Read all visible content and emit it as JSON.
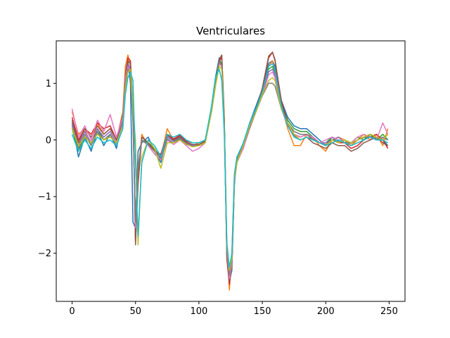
{
  "chart_data": {
    "type": "line",
    "title": "Ventriculares",
    "xlabel": "",
    "ylabel": "",
    "xlim": [
      -12.5,
      262.5
    ],
    "ylim": [
      -2.85,
      1.75
    ],
    "xticks": [
      0,
      50,
      100,
      150,
      200,
      250
    ],
    "xtick_labels": [
      "0",
      "50",
      "100",
      "150",
      "200",
      "250"
    ],
    "yticks": [
      -2,
      -1,
      0,
      1
    ],
    "ytick_labels": [
      "−2",
      "−1",
      "0",
      "1"
    ],
    "grid": false,
    "legend": "none",
    "x": [
      0,
      5,
      10,
      15,
      20,
      25,
      30,
      35,
      40,
      42,
      44,
      46,
      48,
      50,
      52,
      55,
      60,
      65,
      70,
      75,
      80,
      85,
      90,
      95,
      100,
      105,
      110,
      113,
      116,
      118,
      120,
      122,
      124,
      126,
      128,
      130,
      135,
      140,
      145,
      150,
      155,
      158,
      160,
      165,
      170,
      175,
      180,
      185,
      190,
      195,
      200,
      205,
      210,
      215,
      220,
      225,
      230,
      235,
      240,
      245,
      249
    ],
    "series": [
      {
        "color": "#1f77b4",
        "values": [
          0.3,
          -0.3,
          0.05,
          -0.2,
          0.15,
          -0.1,
          0.1,
          -0.15,
          0.4,
          1.2,
          1.4,
          1.0,
          -1.45,
          -1.55,
          -0.2,
          -0.05,
          0.05,
          -0.2,
          -0.4,
          0.05,
          -0.02,
          0.03,
          -0.08,
          -0.08,
          -0.1,
          -0.05,
          0.6,
          1.1,
          1.45,
          1.3,
          0.2,
          -2.0,
          -2.5,
          -2.3,
          -0.8,
          -0.3,
          -0.1,
          0.3,
          0.6,
          0.9,
          1.35,
          1.4,
          1.3,
          0.7,
          0.4,
          0.25,
          0.2,
          0.2,
          0.1,
          0.0,
          -0.1,
          0.05,
          0.0,
          -0.05,
          -0.1,
          0.0,
          0.05,
          0.1,
          0.05,
          0.0,
          -0.1
        ]
      },
      {
        "color": "#ff7f0e",
        "values": [
          0.5,
          0.1,
          0.2,
          -0.1,
          0.3,
          0.1,
          0.2,
          0.0,
          0.5,
          1.3,
          1.5,
          1.3,
          0.5,
          -1.6,
          -0.6,
          0.1,
          -0.1,
          -0.2,
          -0.3,
          0.2,
          0.0,
          0.1,
          -0.05,
          -0.1,
          -0.05,
          0.0,
          0.5,
          1.0,
          1.4,
          1.5,
          0.4,
          -1.8,
          -2.65,
          -2.0,
          -0.6,
          -0.3,
          -0.1,
          0.3,
          0.5,
          0.8,
          1.3,
          1.4,
          1.2,
          0.6,
          0.2,
          -0.1,
          -0.1,
          0.1,
          0.05,
          -0.1,
          -0.2,
          0.0,
          0.05,
          0.0,
          -0.1,
          0.0,
          0.1,
          0.0,
          0.1,
          -0.1,
          0.2
        ]
      },
      {
        "color": "#2ca02c",
        "values": [
          0.2,
          -0.2,
          0.1,
          -0.1,
          0.2,
          0.0,
          0.1,
          -0.1,
          0.3,
          1.0,
          1.3,
          1.2,
          0.3,
          -1.4,
          -0.5,
          0.0,
          -0.05,
          -0.15,
          -0.35,
          0.0,
          -0.05,
          0.05,
          -0.05,
          -0.1,
          -0.08,
          -0.02,
          0.55,
          1.05,
          1.4,
          1.35,
          0.3,
          -1.9,
          -2.4,
          -2.1,
          -0.7,
          -0.4,
          -0.05,
          0.25,
          0.55,
          0.85,
          1.25,
          1.3,
          1.2,
          0.65,
          0.35,
          0.2,
          0.15,
          0.15,
          0.05,
          -0.05,
          -0.05,
          0.05,
          -0.05,
          0.0,
          -0.05,
          0.05,
          0.0,
          0.1,
          0.0,
          0.1,
          0.0
        ]
      },
      {
        "color": "#d62728",
        "values": [
          0.4,
          0.0,
          0.2,
          0.1,
          0.3,
          0.2,
          0.25,
          0.0,
          0.4,
          1.1,
          1.45,
          1.4,
          0.6,
          -1.8,
          -0.8,
          0.05,
          -0.05,
          -0.2,
          -0.25,
          0.1,
          0.02,
          0.08,
          -0.02,
          -0.05,
          -0.05,
          0.0,
          0.5,
          0.95,
          1.4,
          1.45,
          0.35,
          -2.1,
          -2.55,
          -2.2,
          -0.7,
          -0.35,
          -0.15,
          0.25,
          0.55,
          0.9,
          1.45,
          1.55,
          1.4,
          0.7,
          0.3,
          0.1,
          0.05,
          0.1,
          0.0,
          -0.05,
          -0.1,
          0.0,
          -0.05,
          -0.05,
          -0.15,
          -0.1,
          0.0,
          0.05,
          0.1,
          0.0,
          -0.15
        ]
      },
      {
        "color": "#9467bd",
        "values": [
          0.3,
          -0.1,
          0.15,
          -0.05,
          0.2,
          0.05,
          0.15,
          -0.05,
          0.35,
          1.05,
          1.35,
          1.25,
          0.4,
          -1.5,
          -0.55,
          0.05,
          -0.05,
          -0.2,
          -0.3,
          0.05,
          -0.02,
          0.05,
          -0.05,
          -0.1,
          -0.1,
          -0.05,
          0.55,
          1.0,
          1.35,
          1.3,
          0.25,
          -1.95,
          -2.35,
          -2.15,
          -0.65,
          -0.3,
          -0.08,
          0.3,
          0.55,
          0.8,
          1.2,
          1.25,
          1.15,
          0.6,
          0.3,
          0.15,
          0.1,
          0.1,
          0.05,
          -0.05,
          -0.05,
          0.0,
          0.05,
          -0.05,
          -0.05,
          0.0,
          0.05,
          0.05,
          0.0,
          0.05,
          0.0
        ]
      },
      {
        "color": "#8c564b",
        "values": [
          0.35,
          -0.05,
          0.2,
          0.05,
          0.25,
          0.1,
          0.2,
          0.0,
          0.45,
          1.15,
          1.4,
          1.35,
          0.55,
          -1.85,
          -0.75,
          0.05,
          -0.05,
          -0.18,
          -0.28,
          0.08,
          0.0,
          0.06,
          -0.04,
          -0.08,
          -0.08,
          -0.02,
          0.52,
          0.98,
          1.42,
          1.5,
          0.38,
          -2.05,
          -2.5,
          -2.25,
          -0.72,
          -0.38,
          -0.12,
          0.22,
          0.52,
          0.92,
          1.48,
          1.55,
          1.42,
          0.68,
          0.28,
          0.08,
          0.0,
          0.05,
          -0.05,
          -0.1,
          -0.15,
          -0.05,
          -0.1,
          -0.1,
          -0.2,
          -0.15,
          -0.05,
          0.0,
          0.05,
          -0.05,
          -0.1
        ]
      },
      {
        "color": "#e377c2",
        "values": [
          0.55,
          0.05,
          0.25,
          0.0,
          0.35,
          0.15,
          0.45,
          0.05,
          0.4,
          1.1,
          1.3,
          1.2,
          0.4,
          -1.55,
          -0.5,
          0.0,
          -0.1,
          -0.25,
          -0.35,
          0.0,
          -0.08,
          0.0,
          -0.1,
          -0.2,
          -0.15,
          -0.05,
          0.5,
          0.95,
          1.35,
          1.3,
          0.25,
          -1.95,
          -2.45,
          -2.2,
          -0.75,
          -0.4,
          -0.15,
          0.2,
          0.5,
          0.8,
          1.15,
          1.2,
          1.1,
          0.55,
          0.25,
          0.1,
          0.05,
          0.1,
          0.05,
          -0.05,
          0.0,
          0.05,
          0.0,
          -0.05,
          -0.05,
          0.05,
          0.1,
          0.05,
          0.0,
          0.3,
          0.1
        ]
      },
      {
        "color": "#7f7f7f",
        "values": [
          0.25,
          -0.15,
          0.1,
          -0.1,
          0.15,
          0.0,
          0.1,
          -0.1,
          0.3,
          1.0,
          1.25,
          1.15,
          0.35,
          -1.45,
          -0.5,
          0.0,
          -0.08,
          -0.2,
          -0.32,
          0.02,
          -0.05,
          0.02,
          -0.06,
          -0.12,
          -0.1,
          -0.04,
          0.55,
          1.0,
          1.38,
          1.32,
          0.28,
          -1.92,
          -2.38,
          -2.12,
          -0.68,
          -0.36,
          -0.1,
          0.22,
          0.5,
          0.78,
          1.0,
          1.0,
          0.95,
          0.55,
          0.3,
          0.15,
          0.1,
          0.1,
          0.02,
          -0.05,
          -0.08,
          0.0,
          -0.02,
          -0.04,
          -0.06,
          0.0,
          0.04,
          0.06,
          0.02,
          0.04,
          0.0
        ]
      },
      {
        "color": "#bcbd22",
        "values": [
          0.2,
          -0.1,
          0.05,
          -0.05,
          0.1,
          0.0,
          0.05,
          -0.05,
          0.25,
          0.9,
          1.2,
          1.25,
          0.6,
          0.0,
          -1.85,
          -0.3,
          0.0,
          -0.15,
          -0.5,
          -0.05,
          -0.05,
          0.0,
          -0.08,
          -0.12,
          -0.1,
          -0.05,
          0.5,
          0.95,
          1.3,
          1.25,
          0.2,
          -1.85,
          -2.3,
          -2.1,
          -0.7,
          -0.4,
          -0.1,
          0.25,
          0.5,
          0.8,
          1.05,
          1.1,
          1.05,
          0.55,
          0.3,
          0.1,
          0.0,
          0.05,
          0.0,
          -0.05,
          -0.1,
          0.0,
          -0.05,
          0.0,
          -0.05,
          0.0,
          0.05,
          0.1,
          0.05,
          0.0,
          0.1
        ]
      },
      {
        "color": "#17becf",
        "values": [
          0.1,
          -0.2,
          0.0,
          -0.15,
          0.05,
          -0.05,
          0.0,
          -0.1,
          0.2,
          0.8,
          1.1,
          1.2,
          1.05,
          -0.4,
          -1.7,
          -0.4,
          0.0,
          -0.1,
          -0.3,
          0.1,
          0.05,
          0.1,
          0.0,
          -0.05,
          -0.05,
          0.0,
          0.6,
          1.1,
          1.25,
          1.05,
          0.1,
          -1.8,
          -2.25,
          -2.0,
          -0.6,
          -0.3,
          -0.05,
          0.3,
          0.55,
          0.85,
          1.3,
          1.35,
          1.25,
          0.6,
          0.25,
          0.05,
          0.0,
          0.05,
          0.0,
          -0.05,
          -0.1,
          -0.05,
          0.0,
          -0.05,
          -0.1,
          -0.05,
          0.0,
          0.05,
          0.0,
          0.0,
          -0.05
        ]
      }
    ]
  }
}
